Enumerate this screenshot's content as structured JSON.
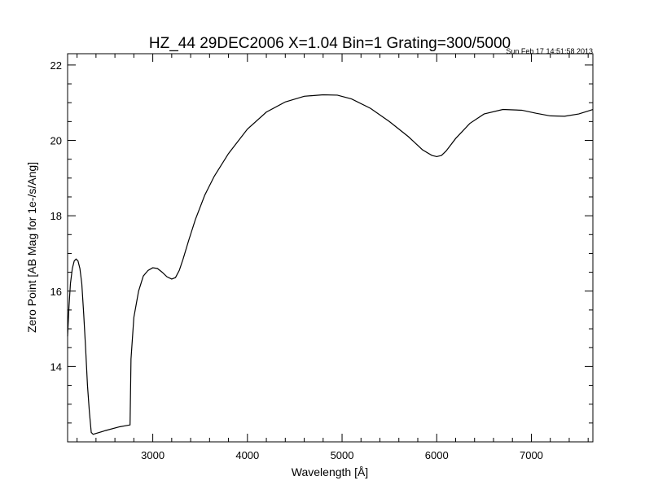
{
  "chart_data": {
    "type": "line",
    "title": "HZ_44 29DEC2006 X=1.04 Bin=1 Grating=300/5000",
    "timestamp": "Sun Feb 17 14:51:58 2013",
    "xlabel": "Wavelength [Å]",
    "ylabel": "Zero Point [AB Mag for 1e-/s/Ang]",
    "xlim": [
      2100,
      7650
    ],
    "ylim": [
      12.0,
      22.3
    ],
    "xticks": [
      {
        "value": 3000,
        "label": "3000"
      },
      {
        "value": 4000,
        "label": "4000"
      },
      {
        "value": 5000,
        "label": "5000"
      },
      {
        "value": 6000,
        "label": "6000"
      },
      {
        "value": 7000,
        "label": "7000"
      }
    ],
    "yticks": [
      {
        "value": 14,
        "label": "14"
      },
      {
        "value": 16,
        "label": "16"
      },
      {
        "value": 18,
        "label": "18"
      },
      {
        "value": 20,
        "label": "20"
      },
      {
        "value": 22,
        "label": "22"
      }
    ],
    "grid": false,
    "series": [
      {
        "x": [
          2100,
          2115,
          2130,
          2150,
          2170,
          2190,
          2210,
          2230,
          2250,
          2270,
          2290,
          2310,
          2330,
          2350,
          2370,
          2500,
          2650,
          2760,
          2770,
          2800,
          2850,
          2900,
          2950,
          3000,
          3050,
          3100,
          3150,
          3200,
          3240,
          3280,
          3320,
          3380,
          3450,
          3550,
          3650,
          3800,
          4000,
          4200,
          4400,
          4600,
          4800,
          4950,
          5100,
          5300,
          5500,
          5700,
          5850,
          5950,
          6000,
          6050,
          6100,
          6200,
          6350,
          6500,
          6700,
          6900,
          7050,
          7200,
          7350,
          7500,
          7600,
          7650
        ],
        "y": [
          14.8,
          15.6,
          16.2,
          16.6,
          16.8,
          16.85,
          16.8,
          16.6,
          16.2,
          15.4,
          14.5,
          13.5,
          12.8,
          12.25,
          12.2,
          12.3,
          12.4,
          12.45,
          14.2,
          15.3,
          16.0,
          16.4,
          16.55,
          16.62,
          16.6,
          16.5,
          16.38,
          16.32,
          16.36,
          16.55,
          16.85,
          17.35,
          17.9,
          18.55,
          19.05,
          19.65,
          20.3,
          20.75,
          21.02,
          21.17,
          21.21,
          21.2,
          21.1,
          20.85,
          20.5,
          20.1,
          19.75,
          19.6,
          19.57,
          19.6,
          19.72,
          20.05,
          20.45,
          20.7,
          20.82,
          20.8,
          20.72,
          20.65,
          20.64,
          20.7,
          20.78,
          20.82
        ]
      }
    ]
  }
}
